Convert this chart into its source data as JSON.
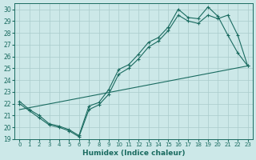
{
  "xlabel": "Humidex (Indice chaleur)",
  "bg_color": "#cce8e8",
  "grid_color": "#aacccc",
  "line_color": "#1a6b60",
  "xlim": [
    -0.5,
    23.5
  ],
  "ylim": [
    19,
    30.5
  ],
  "xticks": [
    0,
    1,
    2,
    3,
    4,
    5,
    6,
    7,
    8,
    9,
    10,
    11,
    12,
    13,
    14,
    15,
    16,
    17,
    18,
    19,
    20,
    21,
    22,
    23
  ],
  "yticks": [
    19,
    20,
    21,
    22,
    23,
    24,
    25,
    26,
    27,
    28,
    29,
    30
  ],
  "series1_x": [
    0,
    1,
    2,
    3,
    4,
    5,
    6,
    7,
    8,
    9,
    10,
    11,
    12,
    13,
    14,
    15,
    16,
    17,
    18,
    19,
    20,
    21,
    22,
    23
  ],
  "series1_y": [
    22.2,
    21.5,
    21.0,
    20.3,
    20.1,
    19.8,
    19.3,
    21.8,
    22.1,
    23.2,
    24.9,
    25.3,
    26.2,
    27.2,
    27.6,
    28.5,
    30.0,
    29.3,
    29.2,
    30.2,
    29.4,
    27.8,
    26.3,
    25.2
  ],
  "series2_x": [
    0,
    23
  ],
  "series2_y": [
    21.5,
    25.2
  ],
  "series3_x": [
    0,
    1,
    2,
    3,
    4,
    5,
    6,
    7,
    8,
    9,
    10,
    11,
    12,
    13,
    14,
    15,
    16,
    17,
    18,
    19,
    20,
    21,
    22,
    23
  ],
  "series3_y": [
    22.0,
    21.4,
    20.8,
    20.2,
    20.0,
    19.7,
    19.2,
    21.5,
    21.9,
    22.8,
    24.5,
    25.0,
    25.8,
    26.8,
    27.3,
    28.2,
    29.5,
    29.0,
    28.8,
    29.5,
    29.2,
    29.5,
    27.8,
    25.2
  ]
}
